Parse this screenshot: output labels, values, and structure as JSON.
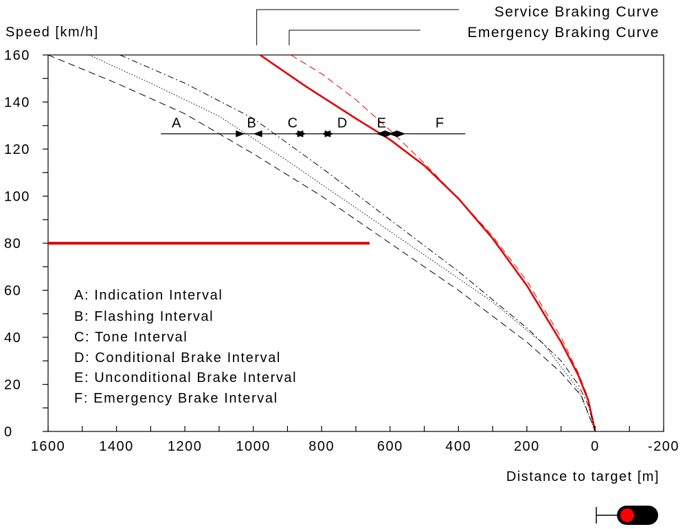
{
  "chart_data": {
    "type": "line",
    "title": "",
    "xlabel": "Distance to target [m]",
    "ylabel": "Speed [km/h]",
    "xlim": [
      1600,
      -200
    ],
    "ylim": [
      0,
      160
    ],
    "x_ticks": [
      1600,
      1400,
      1200,
      1000,
      800,
      600,
      400,
      200,
      0,
      -200
    ],
    "y_ticks": [
      0,
      20,
      40,
      60,
      80,
      100,
      120,
      140,
      160
    ],
    "grid": false,
    "series": [
      {
        "name": "Service Braking Curve",
        "color": "#e00000",
        "style": "solid",
        "points": [
          [
            980,
            160
          ],
          [
            850,
            147
          ],
          [
            700,
            133
          ],
          [
            600,
            124
          ],
          [
            500,
            113
          ],
          [
            400,
            99
          ],
          [
            300,
            82
          ],
          [
            200,
            62
          ],
          [
            100,
            38
          ],
          [
            50,
            24
          ],
          [
            20,
            13
          ],
          [
            0,
            0
          ]
        ]
      },
      {
        "name": "Emergency Braking Curve",
        "color": "#e00000",
        "style": "dashed",
        "points": [
          [
            890,
            160
          ],
          [
            800,
            152
          ],
          [
            700,
            141
          ],
          [
            600,
            128
          ],
          [
            500,
            114
          ],
          [
            400,
            99
          ],
          [
            300,
            83
          ],
          [
            200,
            64
          ],
          [
            100,
            40
          ],
          [
            50,
            25
          ],
          [
            20,
            14
          ],
          [
            0,
            0
          ]
        ]
      },
      {
        "name": "",
        "color": "#000000",
        "style": "dash-dot",
        "points": [
          [
            1390,
            160
          ],
          [
            1200,
            148
          ],
          [
            1000,
            133
          ],
          [
            800,
            112
          ],
          [
            600,
            90
          ],
          [
            400,
            68
          ],
          [
            200,
            44
          ],
          [
            100,
            30
          ],
          [
            50,
            20
          ],
          [
            20,
            11
          ],
          [
            0,
            0
          ]
        ]
      },
      {
        "name": "",
        "color": "#000000",
        "style": "dotted",
        "points": [
          [
            1480,
            160
          ],
          [
            1300,
            148
          ],
          [
            1100,
            134
          ],
          [
            900,
            115
          ],
          [
            700,
            95
          ],
          [
            500,
            75
          ],
          [
            300,
            55
          ],
          [
            150,
            37
          ],
          [
            50,
            18
          ],
          [
            0,
            0
          ]
        ]
      },
      {
        "name": "",
        "color": "#000000",
        "style": "dashed",
        "points": [
          [
            1600,
            160
          ],
          [
            1400,
            148
          ],
          [
            1200,
            135
          ],
          [
            1000,
            118
          ],
          [
            800,
            100
          ],
          [
            600,
            80
          ],
          [
            400,
            60
          ],
          [
            200,
            38
          ],
          [
            100,
            25
          ],
          [
            40,
            15
          ],
          [
            0,
            0
          ]
        ]
      },
      {
        "name": "",
        "color": "#e00000",
        "style": "solid-thick",
        "points": [
          [
            1600,
            80
          ],
          [
            660,
            80
          ]
        ]
      }
    ],
    "labels": [
      {
        "text": "Service Braking Curve",
        "x": 990
      },
      {
        "text": "Emergency Braking Curve",
        "x": 895
      }
    ],
    "intervals": {
      "speed": 126.5,
      "line_x_range": [
        1270,
        380
      ],
      "labels": [
        {
          "letter": "A",
          "x": 1225
        },
        {
          "letter": "B",
          "x": 1005
        },
        {
          "letter": "C",
          "x": 885
        },
        {
          "letter": "D",
          "x": 740
        },
        {
          "letter": "E",
          "x": 625
        },
        {
          "letter": "F",
          "x": 455
        }
      ],
      "markers": [
        {
          "x": 1000,
          "dir": "left"
        },
        {
          "x": 1025,
          "dir": "right"
        },
        {
          "x": 880,
          "dir": "left"
        },
        {
          "x": 845,
          "dir": "right"
        },
        {
          "x": 800,
          "dir": "left"
        },
        {
          "x": 765,
          "dir": "right"
        },
        {
          "x": 640,
          "dir": "left"
        },
        {
          "x": 605,
          "dir": "left"
        },
        {
          "x": 590,
          "dir": "right"
        },
        {
          "x": 555,
          "dir": "right"
        }
      ]
    },
    "annotations": [
      "A: Indication Interval",
      "B: Flashing Interval",
      "C: Tone Interval",
      "D: Conditional Brake Interval",
      "E: Unconditional Brake Interval",
      "F: Emergency Brake Interval"
    ]
  },
  "signal": {
    "lamp_color": "#ff0000",
    "body_color": "#000000"
  }
}
